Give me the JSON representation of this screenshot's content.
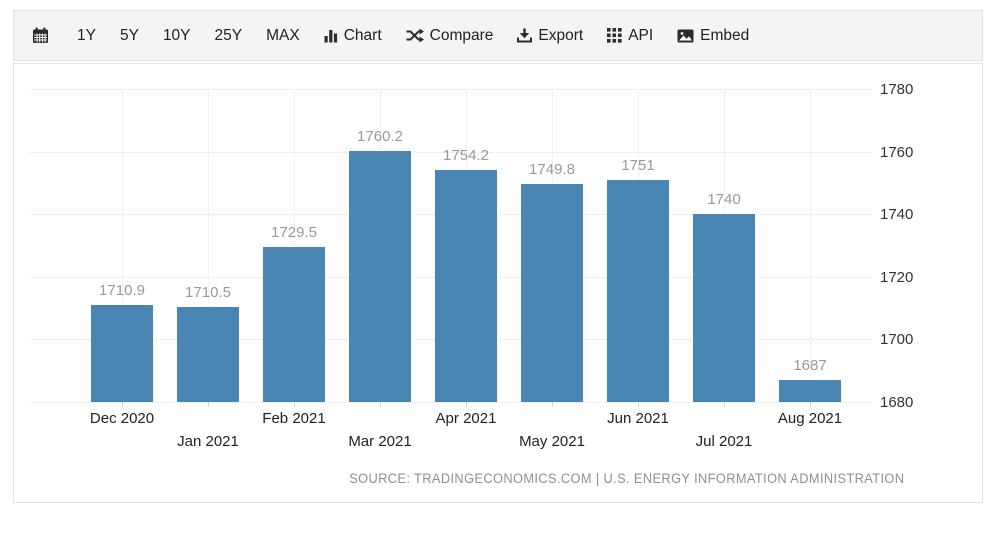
{
  "toolbar": {
    "items": [
      {
        "name": "calendar",
        "label": ""
      },
      {
        "name": "range-1y",
        "label": "1Y"
      },
      {
        "name": "range-5y",
        "label": "5Y"
      },
      {
        "name": "range-10y",
        "label": "10Y"
      },
      {
        "name": "range-25y",
        "label": "25Y"
      },
      {
        "name": "range-max",
        "label": "MAX"
      },
      {
        "name": "chart",
        "label": "Chart"
      },
      {
        "name": "compare",
        "label": "Compare"
      },
      {
        "name": "export",
        "label": "Export"
      },
      {
        "name": "api",
        "label": "API"
      },
      {
        "name": "embed",
        "label": "Embed"
      }
    ]
  },
  "chart_data": {
    "type": "bar",
    "categories": [
      "Dec 2020",
      "Jan 2021",
      "Feb 2021",
      "Mar 2021",
      "Apr 2021",
      "May 2021",
      "Jun 2021",
      "Jul 2021",
      "Aug 2021"
    ],
    "values": [
      1710.9,
      1710.5,
      1729.5,
      1760.2,
      1754.2,
      1749.8,
      1751,
      1740,
      1687
    ],
    "value_labels": [
      "1710.9",
      "1710.5",
      "1729.5",
      "1760.2",
      "1754.2",
      "1749.8",
      "1751",
      "1740",
      "1687"
    ],
    "y_ticks": [
      1680,
      1700,
      1720,
      1740,
      1760,
      1780
    ],
    "ylim": [
      1680,
      1780
    ],
    "title": "",
    "xlabel": "",
    "ylabel": "",
    "legend": "none",
    "grid": true,
    "axis_side": "right",
    "bar_color": "#4a86b4",
    "value_label_color": "#999999",
    "axis_label_color": "#222222",
    "source": "SOURCE: TRADINGECONOMICS.COM | U.S. ENERGY INFORMATION ADMINISTRATION"
  }
}
